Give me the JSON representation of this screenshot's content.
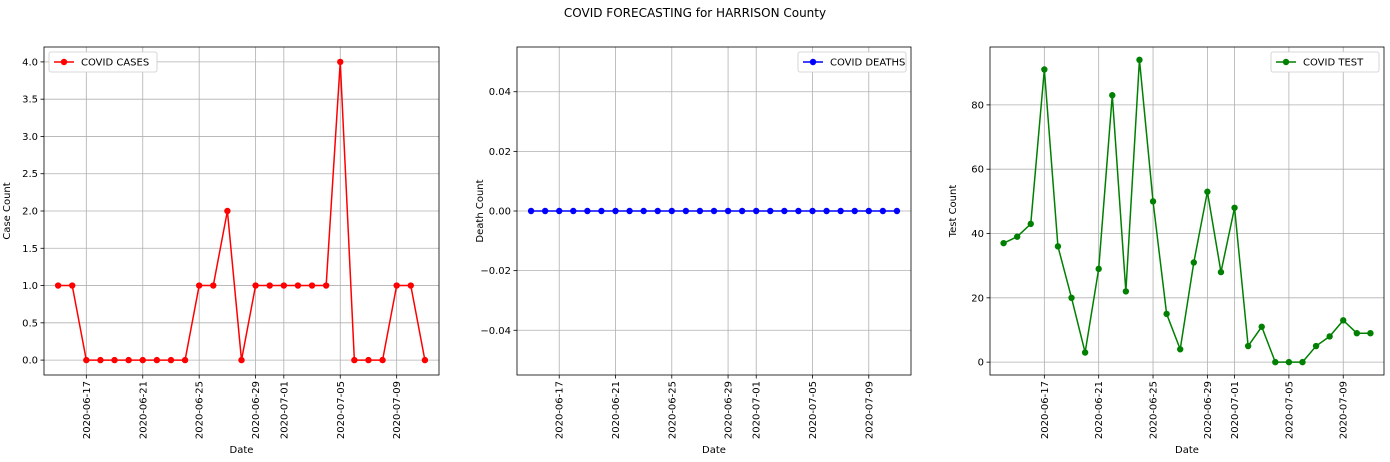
{
  "figure": {
    "title": "COVID FORECASTING for HARRISON County"
  },
  "chart_data": [
    {
      "type": "line",
      "title": "",
      "xlabel": "Date",
      "ylabel": "Case Count",
      "color": "#ff0000",
      "legend": "upper-left",
      "grid": true,
      "ylim": [
        -0.2,
        4.2
      ],
      "yticks": [
        0.0,
        0.5,
        1.0,
        1.5,
        2.0,
        2.5,
        3.0,
        3.5,
        4.0
      ],
      "ytick_labels": [
        "0.0",
        "0.5",
        "1.0",
        "1.5",
        "2.0",
        "2.5",
        "3.0",
        "3.5",
        "4.0"
      ],
      "xticks": [
        "2020-06-17",
        "2020-06-21",
        "2020-06-25",
        "2020-06-29",
        "2020-07-01",
        "2020-07-05",
        "2020-07-09"
      ],
      "series": [
        {
          "name": "COVID CASES",
          "x": [
            "2020-06-15",
            "2020-06-16",
            "2020-06-17",
            "2020-06-18",
            "2020-06-19",
            "2020-06-20",
            "2020-06-21",
            "2020-06-22",
            "2020-06-23",
            "2020-06-24",
            "2020-06-25",
            "2020-06-26",
            "2020-06-27",
            "2020-06-28",
            "2020-06-29",
            "2020-06-30",
            "2020-07-01",
            "2020-07-02",
            "2020-07-03",
            "2020-07-04",
            "2020-07-05",
            "2020-07-06",
            "2020-07-07",
            "2020-07-08",
            "2020-07-09",
            "2020-07-10",
            "2020-07-11"
          ],
          "values": [
            1,
            1,
            0,
            0,
            0,
            0,
            0,
            0,
            0,
            0,
            1,
            1,
            2,
            0,
            1,
            1,
            1,
            1,
            1,
            1,
            4,
            0,
            0,
            0,
            1,
            1,
            0
          ]
        }
      ]
    },
    {
      "type": "line",
      "title": "",
      "xlabel": "Date",
      "ylabel": "Death Count",
      "color": "#0000ff",
      "legend": "upper-right",
      "grid": true,
      "ylim": [
        -0.055,
        0.055
      ],
      "yticks": [
        -0.04,
        -0.02,
        0.0,
        0.02,
        0.04
      ],
      "ytick_labels": [
        "−0.04",
        "−0.02",
        "0.00",
        "0.02",
        "0.04"
      ],
      "xticks": [
        "2020-06-17",
        "2020-06-21",
        "2020-06-25",
        "2020-06-29",
        "2020-07-01",
        "2020-07-05",
        "2020-07-09"
      ],
      "series": [
        {
          "name": "COVID DEATHS",
          "x": [
            "2020-06-15",
            "2020-06-16",
            "2020-06-17",
            "2020-06-18",
            "2020-06-19",
            "2020-06-20",
            "2020-06-21",
            "2020-06-22",
            "2020-06-23",
            "2020-06-24",
            "2020-06-25",
            "2020-06-26",
            "2020-06-27",
            "2020-06-28",
            "2020-06-29",
            "2020-06-30",
            "2020-07-01",
            "2020-07-02",
            "2020-07-03",
            "2020-07-04",
            "2020-07-05",
            "2020-07-06",
            "2020-07-07",
            "2020-07-08",
            "2020-07-09",
            "2020-07-10",
            "2020-07-11"
          ],
          "values": [
            0,
            0,
            0,
            0,
            0,
            0,
            0,
            0,
            0,
            0,
            0,
            0,
            0,
            0,
            0,
            0,
            0,
            0,
            0,
            0,
            0,
            0,
            0,
            0,
            0,
            0,
            0
          ]
        }
      ]
    },
    {
      "type": "line",
      "title": "",
      "xlabel": "Date",
      "ylabel": "Test Count",
      "color": "#008000",
      "legend": "upper-right",
      "grid": true,
      "ylim": [
        -4,
        98
      ],
      "yticks": [
        0,
        20,
        40,
        60,
        80
      ],
      "ytick_labels": [
        "0",
        "20",
        "40",
        "60",
        "80"
      ],
      "xticks": [
        "2020-06-17",
        "2020-06-21",
        "2020-06-25",
        "2020-06-29",
        "2020-07-01",
        "2020-07-05",
        "2020-07-09"
      ],
      "series": [
        {
          "name": "COVID TEST",
          "x": [
            "2020-06-14",
            "2020-06-15",
            "2020-06-16",
            "2020-06-17",
            "2020-06-18",
            "2020-06-19",
            "2020-06-20",
            "2020-06-21",
            "2020-06-22",
            "2020-06-23",
            "2020-06-24",
            "2020-06-25",
            "2020-06-26",
            "2020-06-27",
            "2020-06-28",
            "2020-06-29",
            "2020-06-30",
            "2020-07-01",
            "2020-07-02",
            "2020-07-03",
            "2020-07-04",
            "2020-07-05",
            "2020-07-06",
            "2020-07-07",
            "2020-07-08",
            "2020-07-09",
            "2020-07-10",
            "2020-07-11"
          ],
          "values": [
            37,
            39,
            43,
            91,
            36,
            20,
            3,
            29,
            83,
            22,
            94,
            50,
            15,
            4,
            31,
            53,
            28,
            48,
            5,
            11,
            0,
            0,
            0,
            5,
            8,
            13,
            9,
            9
          ]
        }
      ]
    }
  ]
}
